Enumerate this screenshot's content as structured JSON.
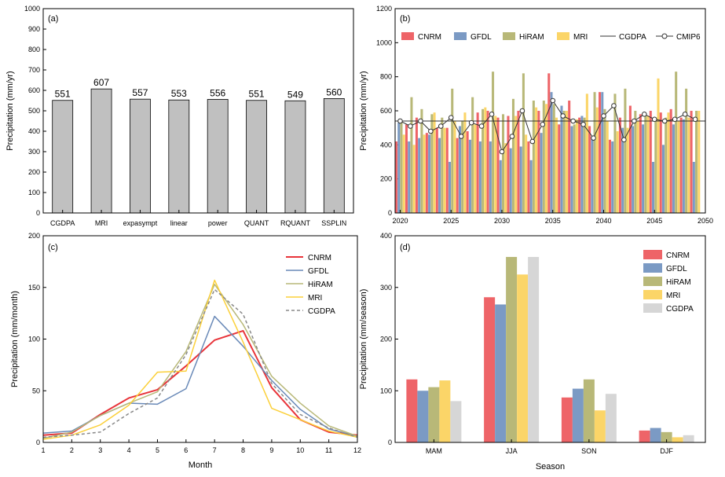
{
  "chart_data": [
    {
      "panel": "(a)",
      "type": "bar",
      "ylabel": "Precipitation (mm/yr)",
      "ylim": [
        0,
        1000
      ],
      "yticks": [
        0,
        100,
        200,
        300,
        400,
        500,
        600,
        700,
        800,
        900,
        1000
      ],
      "categories": [
        "CGDPA",
        "MRI",
        "expasympt",
        "linear",
        "power",
        "QUANT",
        "RQUANT",
        "SSPLIN"
      ],
      "values": [
        551,
        607,
        557,
        553,
        556,
        551,
        549,
        560
      ],
      "labels": [
        "551",
        "607",
        "557",
        "553",
        "556",
        "551",
        "549",
        "560"
      ],
      "bar_color": "#c0c0c0"
    },
    {
      "panel": "(b)",
      "type": "bar",
      "ylabel": "Precipitation (mm/yr)",
      "ylim": [
        0,
        1200
      ],
      "yticks": [
        0,
        200,
        400,
        600,
        800,
        1000,
        1200
      ],
      "xlim": [
        2019,
        2050
      ],
      "xticks": [
        2020,
        2025,
        2030,
        2035,
        2040,
        2045,
        2050
      ],
      "years": [
        2019,
        2020,
        2021,
        2022,
        2023,
        2024,
        2025,
        2026,
        2027,
        2028,
        2029,
        2030,
        2031,
        2032,
        2033,
        2034,
        2035,
        2036,
        2037,
        2038,
        2039,
        2040,
        2041,
        2042,
        2043,
        2044,
        2045,
        2046,
        2047,
        2048,
        2049
      ],
      "series": [
        {
          "name": "CNRM",
          "color": "#ee6468",
          "values": [
            600,
            420,
            520,
            560,
            470,
            500,
            500,
            440,
            480,
            590,
            600,
            560,
            570,
            600,
            420,
            600,
            820,
            520,
            660,
            560,
            510,
            710,
            430,
            560,
            630,
            580,
            600,
            590,
            610,
            560,
            600
          ]
        },
        {
          "name": "GFDL",
          "color": "#7b9ac4",
          "values": [
            410,
            530,
            420,
            440,
            460,
            440,
            300,
            510,
            430,
            420,
            420,
            310,
            380,
            390,
            310,
            470,
            710,
            630,
            510,
            570,
            450,
            710,
            420,
            500,
            510,
            520,
            300,
            400,
            520,
            550,
            300
          ]
        },
        {
          "name": "HiRAM",
          "color": "#b8b878",
          "values": [
            520,
            540,
            680,
            610,
            580,
            560,
            730,
            540,
            680,
            610,
            830,
            580,
            670,
            820,
            660,
            660,
            640,
            600,
            520,
            560,
            710,
            610,
            700,
            730,
            600,
            570,
            560,
            560,
            830,
            730,
            600
          ]
        },
        {
          "name": "MRI",
          "color": "#fbd568",
          "values": [
            530,
            460,
            400,
            460,
            590,
            500,
            540,
            590,
            520,
            620,
            570,
            410,
            570,
            460,
            620,
            640,
            560,
            600,
            550,
            700,
            620,
            540,
            480,
            500,
            540,
            570,
            790,
            590,
            540,
            560,
            600
          ]
        }
      ],
      "lines": [
        {
          "name": "CGDPA",
          "color": "#333333",
          "value": 540
        },
        {
          "name": "CMIP6",
          "color": "#333333",
          "marker": "circle-open",
          "values": [
            500,
            540,
            510,
            540,
            480,
            510,
            560,
            450,
            530,
            510,
            580,
            360,
            450,
            600,
            420,
            520,
            660,
            570,
            540,
            520,
            440,
            570,
            630,
            430,
            540,
            580,
            550,
            540,
            550,
            580,
            550
          ]
        }
      ]
    },
    {
      "panel": "(c)",
      "type": "line",
      "xlabel": "Month",
      "ylabel": "Precipitation (mm/month)",
      "ylim": [
        0,
        200
      ],
      "yticks": [
        0,
        50,
        100,
        150,
        200
      ],
      "x": [
        1,
        2,
        3,
        4,
        5,
        6,
        7,
        8,
        9,
        10,
        11,
        12
      ],
      "series": [
        {
          "name": "CNRM",
          "color": "#e8343a",
          "values": [
            7,
            9,
            27,
            43,
            51,
            74,
            99,
            108,
            53,
            22,
            10,
            7
          ]
        },
        {
          "name": "GFDL",
          "color": "#6a8ab8",
          "values": [
            9,
            11,
            26,
            38,
            37,
            52,
            122,
            93,
            60,
            32,
            13,
            6
          ]
        },
        {
          "name": "HiRAM",
          "color": "#b8b878",
          "values": [
            4,
            10,
            26,
            38,
            49,
            88,
            153,
            114,
            64,
            38,
            16,
            6
          ]
        },
        {
          "name": "MRI",
          "color": "#fbd03a",
          "values": [
            3,
            7,
            17,
            36,
            68,
            69,
            157,
            97,
            33,
            22,
            11,
            5
          ]
        },
        {
          "name": "CGDPA",
          "color": "#888888",
          "dashed": true,
          "values": [
            5,
            7,
            10,
            28,
            43,
            85,
            148,
            124,
            57,
            27,
            14,
            5
          ]
        }
      ]
    },
    {
      "panel": "(d)",
      "type": "bar",
      "xlabel": "Season",
      "ylabel": "Precipitation (mm/season)",
      "ylim": [
        0,
        400
      ],
      "yticks": [
        0,
        100,
        200,
        300,
        400
      ],
      "categories": [
        "MAM",
        "JJA",
        "SON",
        "DJF"
      ],
      "series": [
        {
          "name": "CNRM",
          "color": "#ee6468",
          "values": [
            122,
            281,
            87,
            23
          ]
        },
        {
          "name": "GFDL",
          "color": "#7b9ac4",
          "values": [
            100,
            267,
            104,
            28
          ]
        },
        {
          "name": "HiRAM",
          "color": "#b8b878",
          "values": [
            107,
            359,
            122,
            20
          ]
        },
        {
          "name": "MRI",
          "color": "#fbd568",
          "values": [
            120,
            325,
            62,
            10
          ]
        },
        {
          "name": "CGDPA",
          "color": "#d6d6d6",
          "values": [
            80,
            359,
            94,
            14
          ]
        }
      ]
    }
  ]
}
